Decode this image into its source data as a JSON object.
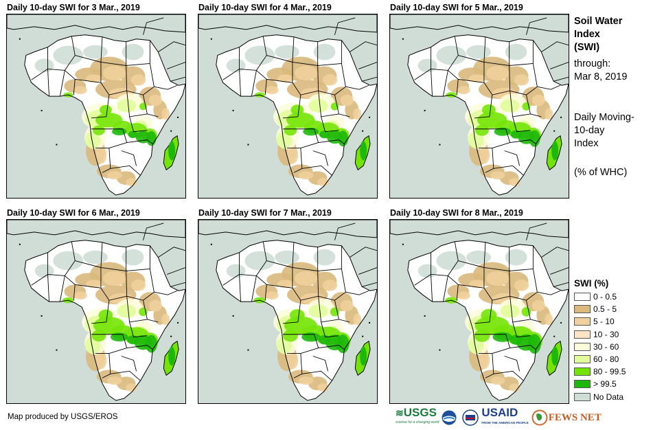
{
  "panels": [
    {
      "title": "Daily 10-day SWI for 3 Mar., 2019"
    },
    {
      "title": "Daily 10-day SWI for 4 Mar., 2019"
    },
    {
      "title": "Daily 10-day SWI for 5 Mar., 2019"
    },
    {
      "title": "Daily 10-day SWI for 6 Mar., 2019"
    },
    {
      "title": "Daily 10-day SWI for 7 Mar., 2019"
    },
    {
      "title": "Daily 10-day SWI for 8 Mar., 2019"
    }
  ],
  "info": {
    "title_line1": "Soil Water",
    "title_line2": "Index",
    "title_line3": "(SWI)",
    "through_label": "through:",
    "through_date": "Mar 8, 2019",
    "desc_line1": "Daily Moving-",
    "desc_line2": "10-day",
    "desc_line3": "Index",
    "units": "(% of WHC)"
  },
  "legend": {
    "title": "SWI (%)",
    "items": [
      {
        "label": "0 - 0.5",
        "color": "#ffffff"
      },
      {
        "label": "0.5 - 5",
        "color": "#d9b97c"
      },
      {
        "label": "5 - 10",
        "color": "#f0d09c"
      },
      {
        "label": "10 - 30",
        "color": "#fde4c4"
      },
      {
        "label": "30 - 60",
        "color": "#fcfcdc"
      },
      {
        "label": "60 - 80",
        "color": "#e2fc9c"
      },
      {
        "label": "80 - 99.5",
        "color": "#74e408"
      },
      {
        "label": "> 99.5",
        "color": "#1eb80c"
      },
      {
        "label": "No Data",
        "color": "#cfddd6"
      }
    ]
  },
  "credit": "Map produced by USGS/EROS",
  "logos": [
    "USGS",
    "NOAA",
    "USAID",
    "FEWS NET"
  ],
  "logo_captions": {
    "usgs": "science for a changing world",
    "usaid": "FROM THE AMERICAN PEOPLE"
  },
  "colors": {
    "ocean": "#cfddd6",
    "land": "#ffffff",
    "border": "#000000"
  }
}
